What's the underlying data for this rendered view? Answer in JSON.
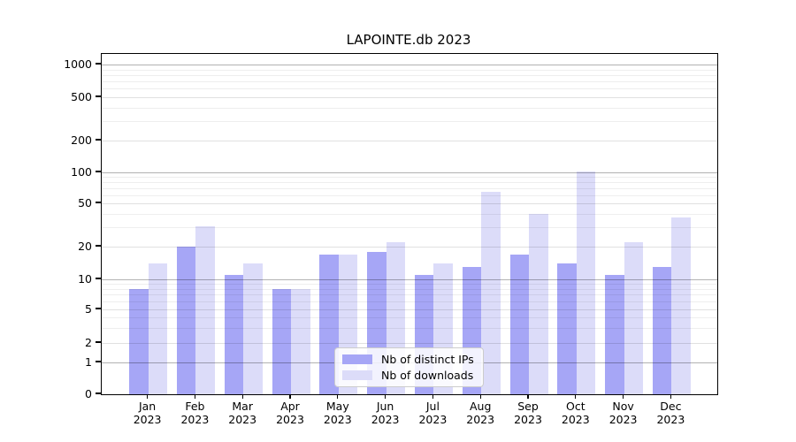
{
  "chart_data": {
    "type": "bar",
    "title": "LAPOINTE.db 2023",
    "categories": [
      "Jan 2023",
      "Feb 2023",
      "Mar 2023",
      "Apr 2023",
      "May 2023",
      "Jun 2023",
      "Jul 2023",
      "Aug 2023",
      "Sep 2023",
      "Oct 2023",
      "Nov 2023",
      "Dec 2023"
    ],
    "month_labels": [
      "Jan",
      "Feb",
      "Mar",
      "Apr",
      "May",
      "Jun",
      "Jul",
      "Aug",
      "Sep",
      "Oct",
      "Nov",
      "Dec"
    ],
    "year_label": "2023",
    "series": [
      {
        "name": "Nb of distinct IPs",
        "color": "#a6a6f6",
        "values": [
          8,
          20,
          11,
          8,
          17,
          18,
          11,
          13,
          17,
          14,
          11,
          13
        ]
      },
      {
        "name": "Nb of downloads",
        "color": "#dcdcf9",
        "values": [
          14,
          31,
          14,
          8,
          17,
          22,
          14,
          65,
          40,
          102,
          22,
          37
        ]
      }
    ],
    "yscale": "symlog",
    "ytick_values": [
      0,
      1,
      2,
      5,
      10,
      20,
      50,
      100,
      200,
      500,
      1000
    ],
    "ytick_labels": [
      "0",
      "1",
      "2",
      "5",
      "10",
      "20",
      "50",
      "100",
      "200",
      "500",
      "1000"
    ],
    "ylim": [
      0,
      1250
    ],
    "grid": true,
    "legend": {
      "labels": [
        "Nb of distinct IPs",
        "Nb of downloads"
      ],
      "position": "lower-center"
    }
  }
}
